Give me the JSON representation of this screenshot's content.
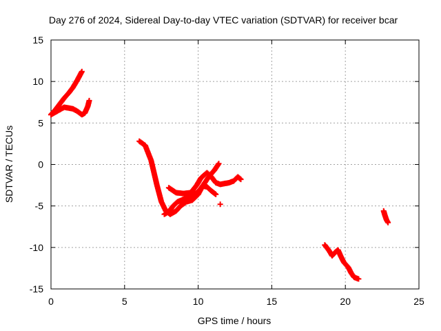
{
  "chart_data": {
    "type": "scatter",
    "title": "Day 276 of 2024, Sidereal Day-to-day VTEC variation (SDTVAR) for receiver bcar",
    "xlabel": "GPS time / hours",
    "ylabel": "SDTVAR / TECUs",
    "xlim": [
      0,
      25
    ],
    "ylim": [
      -15,
      15
    ],
    "xticks": [
      0,
      5,
      10,
      15,
      20,
      25
    ],
    "yticks": [
      15,
      10,
      5,
      0,
      -5,
      -10,
      -15
    ],
    "xtick_labels": [
      "0",
      "5",
      "10",
      "15",
      "20",
      "25"
    ],
    "ytick_labels": [
      "15",
      "10",
      "5",
      "0",
      "-5",
      "-10",
      "-15"
    ],
    "grid": true,
    "legend": "none",
    "marker": "+",
    "color": "#ff0000",
    "arcs": [
      [
        [
          0.0,
          6.0
        ],
        [
          0.3,
          6.6
        ],
        [
          0.6,
          7.3
        ],
        [
          0.9,
          8.0
        ],
        [
          1.2,
          8.6
        ],
        [
          1.5,
          9.3
        ],
        [
          1.8,
          10.2
        ],
        [
          2.1,
          11.2
        ]
      ],
      [
        [
          0.0,
          6.0
        ],
        [
          0.3,
          6.3
        ],
        [
          0.6,
          6.6
        ],
        [
          0.9,
          6.9
        ],
        [
          1.2,
          6.8
        ],
        [
          1.5,
          6.7
        ],
        [
          1.8,
          6.4
        ],
        [
          2.1,
          6.0
        ],
        [
          2.3,
          6.2
        ],
        [
          2.5,
          7.0
        ],
        [
          2.6,
          7.7
        ]
      ],
      [
        [
          6.0,
          2.8
        ],
        [
          6.4,
          2.3
        ],
        [
          6.8,
          0.5
        ],
        [
          7.2,
          -2.5
        ],
        [
          7.5,
          -4.5
        ],
        [
          7.8,
          -5.6
        ],
        [
          8.1,
          -6.0
        ],
        [
          8.5,
          -5.6
        ],
        [
          8.8,
          -5.0
        ],
        [
          9.2,
          -4.5
        ],
        [
          9.6,
          -4.3
        ],
        [
          10.0,
          -3.6
        ],
        [
          10.3,
          -2.6
        ],
        [
          10.6,
          -1.8
        ],
        [
          10.9,
          -1.1
        ],
        [
          11.1,
          -0.7
        ],
        [
          11.4,
          0.1
        ]
      ],
      [
        [
          7.7,
          -6.0
        ],
        [
          8.0,
          -5.7
        ],
        [
          8.3,
          -5.0
        ],
        [
          8.6,
          -4.5
        ],
        [
          9.0,
          -4.2
        ],
        [
          9.5,
          -3.8
        ],
        [
          10.0,
          -3.3
        ],
        [
          10.3,
          -2.6
        ],
        [
          10.6,
          -2.7
        ],
        [
          10.9,
          -3.2
        ],
        [
          11.2,
          -3.6
        ]
      ],
      [
        [
          8.0,
          -2.8
        ],
        [
          8.5,
          -3.4
        ],
        [
          9.0,
          -3.5
        ],
        [
          9.5,
          -3.4
        ],
        [
          9.9,
          -2.5
        ],
        [
          10.2,
          -1.6
        ],
        [
          10.6,
          -1.0
        ],
        [
          10.9,
          -1.5
        ],
        [
          11.2,
          -2.2
        ],
        [
          11.5,
          -2.4
        ],
        [
          11.8,
          -2.3
        ],
        [
          12.1,
          -2.2
        ],
        [
          12.4,
          -2.0
        ],
        [
          12.7,
          -1.5
        ],
        [
          12.9,
          -1.8
        ]
      ],
      [
        [
          11.5,
          -4.8
        ]
      ],
      [
        [
          18.6,
          -9.7
        ],
        [
          18.9,
          -10.4
        ],
        [
          19.1,
          -11.0
        ],
        [
          19.3,
          -10.6
        ],
        [
          19.5,
          -10.3
        ],
        [
          19.7,
          -11.1
        ],
        [
          19.9,
          -11.8
        ],
        [
          20.2,
          -12.4
        ],
        [
          20.4,
          -13.1
        ],
        [
          20.6,
          -13.6
        ],
        [
          20.9,
          -13.8
        ]
      ],
      [
        [
          22.6,
          -5.6
        ],
        [
          22.7,
          -6.2
        ],
        [
          22.8,
          -6.7
        ],
        [
          22.9,
          -7.0
        ]
      ]
    ]
  }
}
